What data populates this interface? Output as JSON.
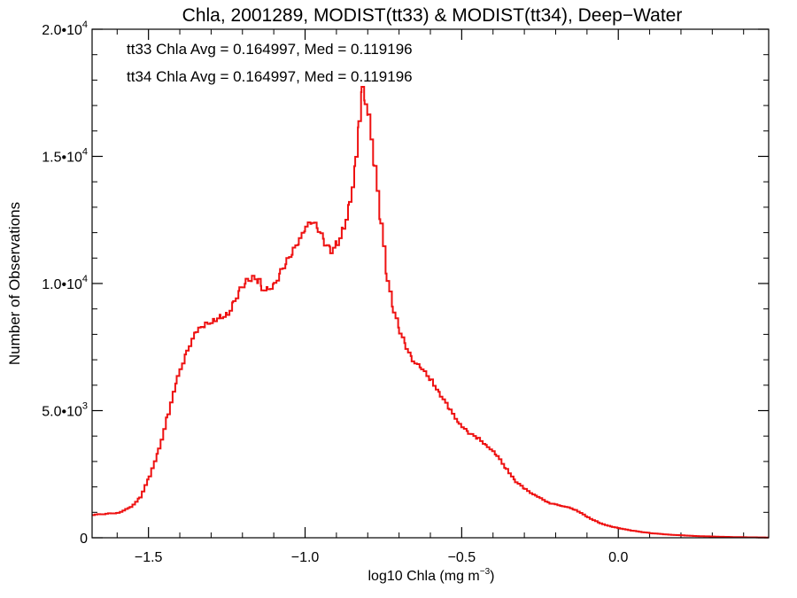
{
  "chart_data": {
    "type": "line",
    "title": "Chla, 2001289, MODIST(tt33) & MODIST(tt34), Deep−Water",
    "xlabel": "log10 Chla (mg m",
    "xlabel_sup": "−3",
    "xlabel_close": ")",
    "ylabel": "Number of Observations",
    "xlim": [
      -1.68,
      0.48
    ],
    "ylim": [
      0,
      20000
    ],
    "xticks": [
      -1.5,
      -1.0,
      -0.5,
      0.0
    ],
    "xtick_labels": [
      "−1.5",
      "−1.0",
      "−0.5",
      "0.0"
    ],
    "yticks": [
      {
        "value": 0,
        "mantissa": "0",
        "exp": ""
      },
      {
        "value": 5000,
        "mantissa": "5.0•10",
        "exp": "3"
      },
      {
        "value": 10000,
        "mantissa": "1.0•10",
        "exp": "4"
      },
      {
        "value": 15000,
        "mantissa": "1.5•10",
        "exp": "4"
      },
      {
        "value": 20000,
        "mantissa": "2.0•10",
        "exp": "4"
      }
    ],
    "grid": false,
    "annotations": [
      {
        "text": "tt33 Chla Avg = 0.164997, Med = 0.119196",
        "color": "#000000"
      },
      {
        "text": "tt34 Chla Avg = 0.164997, Med = 0.119196",
        "color": "#ee1111"
      }
    ],
    "series": [
      {
        "color": "#ee1111",
        "style": "step",
        "points": [
          [
            -1.68,
            900
          ],
          [
            -1.6,
            980
          ],
          [
            -1.56,
            1200
          ],
          [
            -1.53,
            1600
          ],
          [
            -1.5,
            2400
          ],
          [
            -1.47,
            3500
          ],
          [
            -1.44,
            4900
          ],
          [
            -1.41,
            6300
          ],
          [
            -1.38,
            7400
          ],
          [
            -1.35,
            8100
          ],
          [
            -1.32,
            8400
          ],
          [
            -1.29,
            8600
          ],
          [
            -1.27,
            8700
          ],
          [
            -1.25,
            8800
          ],
          [
            -1.23,
            9300
          ],
          [
            -1.21,
            9800
          ],
          [
            -1.19,
            10100
          ],
          [
            -1.17,
            10200
          ],
          [
            -1.15,
            10100
          ],
          [
            -1.14,
            9800
          ],
          [
            -1.12,
            9800
          ],
          [
            -1.1,
            10000
          ],
          [
            -1.08,
            10500
          ],
          [
            -1.06,
            10900
          ],
          [
            -1.04,
            11300
          ],
          [
            -1.02,
            11700
          ],
          [
            -1.0,
            12200
          ],
          [
            -0.98,
            12400
          ],
          [
            -0.96,
            12100
          ],
          [
            -0.94,
            11600
          ],
          [
            -0.92,
            11300
          ],
          [
            -0.9,
            11600
          ],
          [
            -0.88,
            12200
          ],
          [
            -0.86,
            13200
          ],
          [
            -0.84,
            14900
          ],
          [
            -0.83,
            16500
          ],
          [
            -0.82,
            17600
          ],
          [
            -0.81,
            17200
          ],
          [
            -0.8,
            16500
          ],
          [
            -0.78,
            14500
          ],
          [
            -0.76,
            12300
          ],
          [
            -0.74,
            10100
          ],
          [
            -0.72,
            8900
          ],
          [
            -0.7,
            8100
          ],
          [
            -0.68,
            7500
          ],
          [
            -0.66,
            7000
          ],
          [
            -0.63,
            6600
          ],
          [
            -0.6,
            6200
          ],
          [
            -0.57,
            5600
          ],
          [
            -0.54,
            5000
          ],
          [
            -0.51,
            4500
          ],
          [
            -0.48,
            4100
          ],
          [
            -0.45,
            3900
          ],
          [
            -0.42,
            3600
          ],
          [
            -0.39,
            3200
          ],
          [
            -0.36,
            2700
          ],
          [
            -0.33,
            2200
          ],
          [
            -0.3,
            1900
          ],
          [
            -0.26,
            1600
          ],
          [
            -0.22,
            1350
          ],
          [
            -0.18,
            1250
          ],
          [
            -0.14,
            1100
          ],
          [
            -0.1,
            800
          ],
          [
            -0.06,
            560
          ],
          [
            -0.02,
            420
          ],
          [
            0.04,
            280
          ],
          [
            0.1,
            180
          ],
          [
            0.16,
            120
          ],
          [
            0.24,
            70
          ],
          [
            0.32,
            40
          ],
          [
            0.4,
            20
          ],
          [
            0.48,
            10
          ]
        ]
      }
    ]
  }
}
